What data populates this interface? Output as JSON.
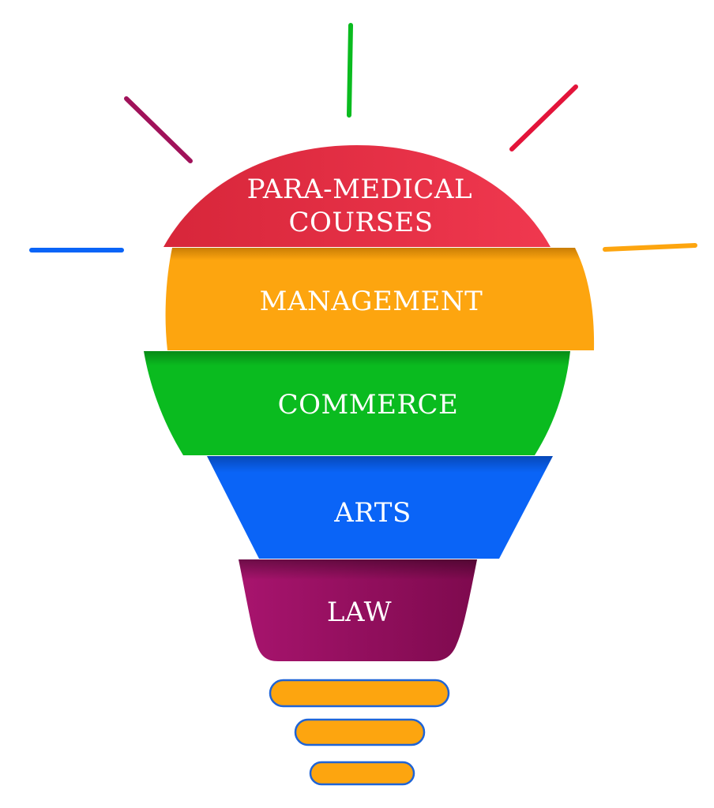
{
  "diagram": {
    "segments": [
      {
        "id": "para-medical",
        "lines": [
          "PARA-MEDICAL",
          "COURSES"
        ],
        "color": "#e3293f"
      },
      {
        "id": "management",
        "lines": [
          "MANAGEMENT"
        ],
        "color": "#fda50f"
      },
      {
        "id": "commerce",
        "lines": [
          "COMMERCE"
        ],
        "color": "#0abb1f"
      },
      {
        "id": "arts",
        "lines": [
          "ARTS"
        ],
        "color": "#0a64f7"
      },
      {
        "id": "law",
        "lines": [
          "LAW"
        ],
        "color": "#a0126a"
      }
    ],
    "rays": {
      "colors": [
        "#0a64f7",
        "#a0125a",
        "#0abb1f",
        "#e3143a",
        "#fda50f"
      ]
    },
    "base": {
      "fill": "#fda50f",
      "stroke": "#1f64d6"
    }
  }
}
